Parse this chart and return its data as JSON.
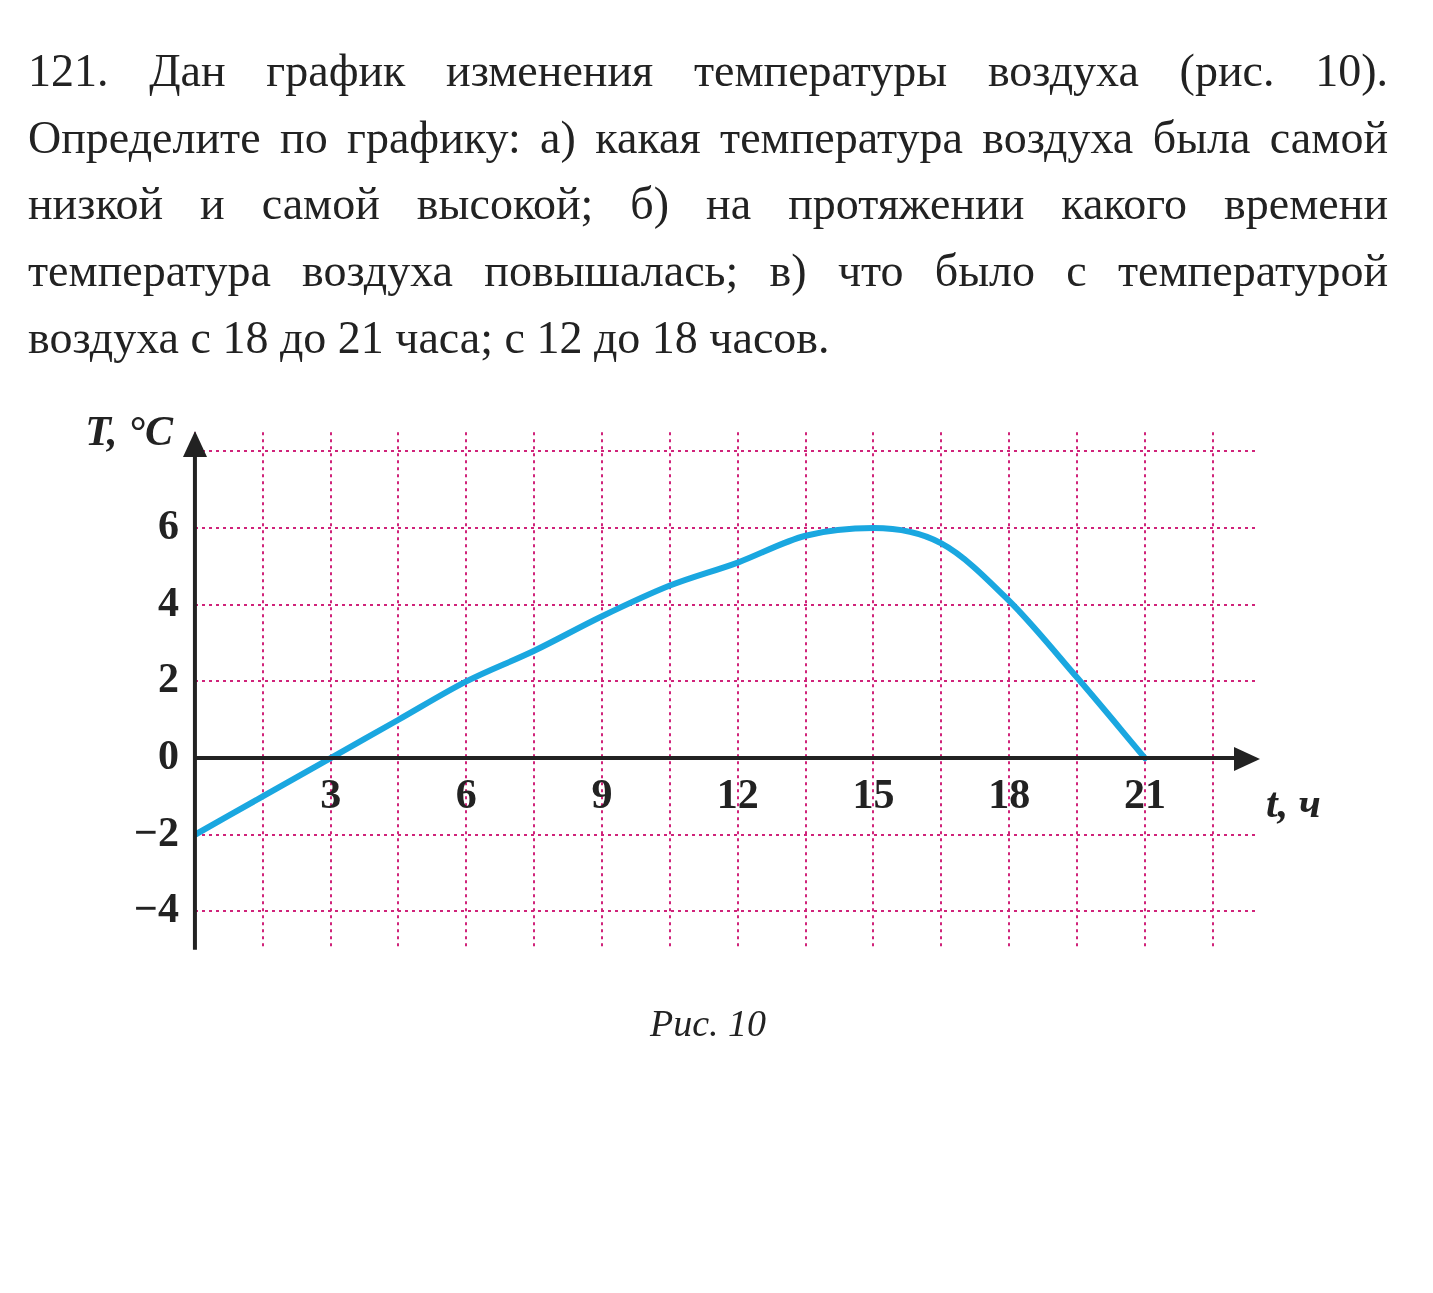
{
  "chart_data": {
    "type": "line",
    "title": "121. Дан график изменения температуры воздуха (рис. 10). Определите по графику: а) какая температура воздуха была самой низкой и самой высокой; б) на протяжении какого времени температура воздуха повышалась; в) что было с температурой воздуха с 18 до 21 часа; с 12 до 18 часов.",
    "xlabel": "t, ч",
    "ylabel": "T, °C",
    "annotations": [
      "Рис. 10"
    ],
    "x": [
      0,
      1.5,
      3,
      4.5,
      6,
      7.5,
      9,
      10.5,
      12,
      13.5,
      15,
      16.5,
      18,
      19.5,
      21
    ],
    "series": [
      {
        "color": "#1aa7e0",
        "values": [
          -2,
          -1,
          0,
          1,
          2,
          2.8,
          3.7,
          4.5,
          5.1,
          5.8,
          6,
          5.6,
          4.1,
          2.1,
          0
        ]
      }
    ],
    "xlim": [
      0,
      23.5
    ],
    "ylim": [
      -5,
      8.5
    ],
    "xticks": [
      {
        "value": 0,
        "label": null
      },
      {
        "value": 1.5,
        "label": null
      },
      3,
      {
        "value": 4.5,
        "label": null
      },
      6,
      {
        "value": 7.5,
        "label": null
      },
      9,
      {
        "value": 10.5,
        "label": null
      },
      12,
      {
        "value": 13.5,
        "label": null
      },
      15,
      {
        "value": 16.5,
        "label": null
      },
      18,
      {
        "value": 19.5,
        "label": null
      },
      21,
      {
        "value": 22.5,
        "label": null
      }
    ],
    "yticks": [
      {
        "value": -4,
        "label": "−4"
      },
      {
        "value": -2,
        "label": "−2"
      },
      0,
      2,
      4,
      6,
      {
        "value": 8,
        "label": null
      }
    ],
    "grid": true,
    "legend": false,
    "marker": "none",
    "line_style": "solid"
  }
}
